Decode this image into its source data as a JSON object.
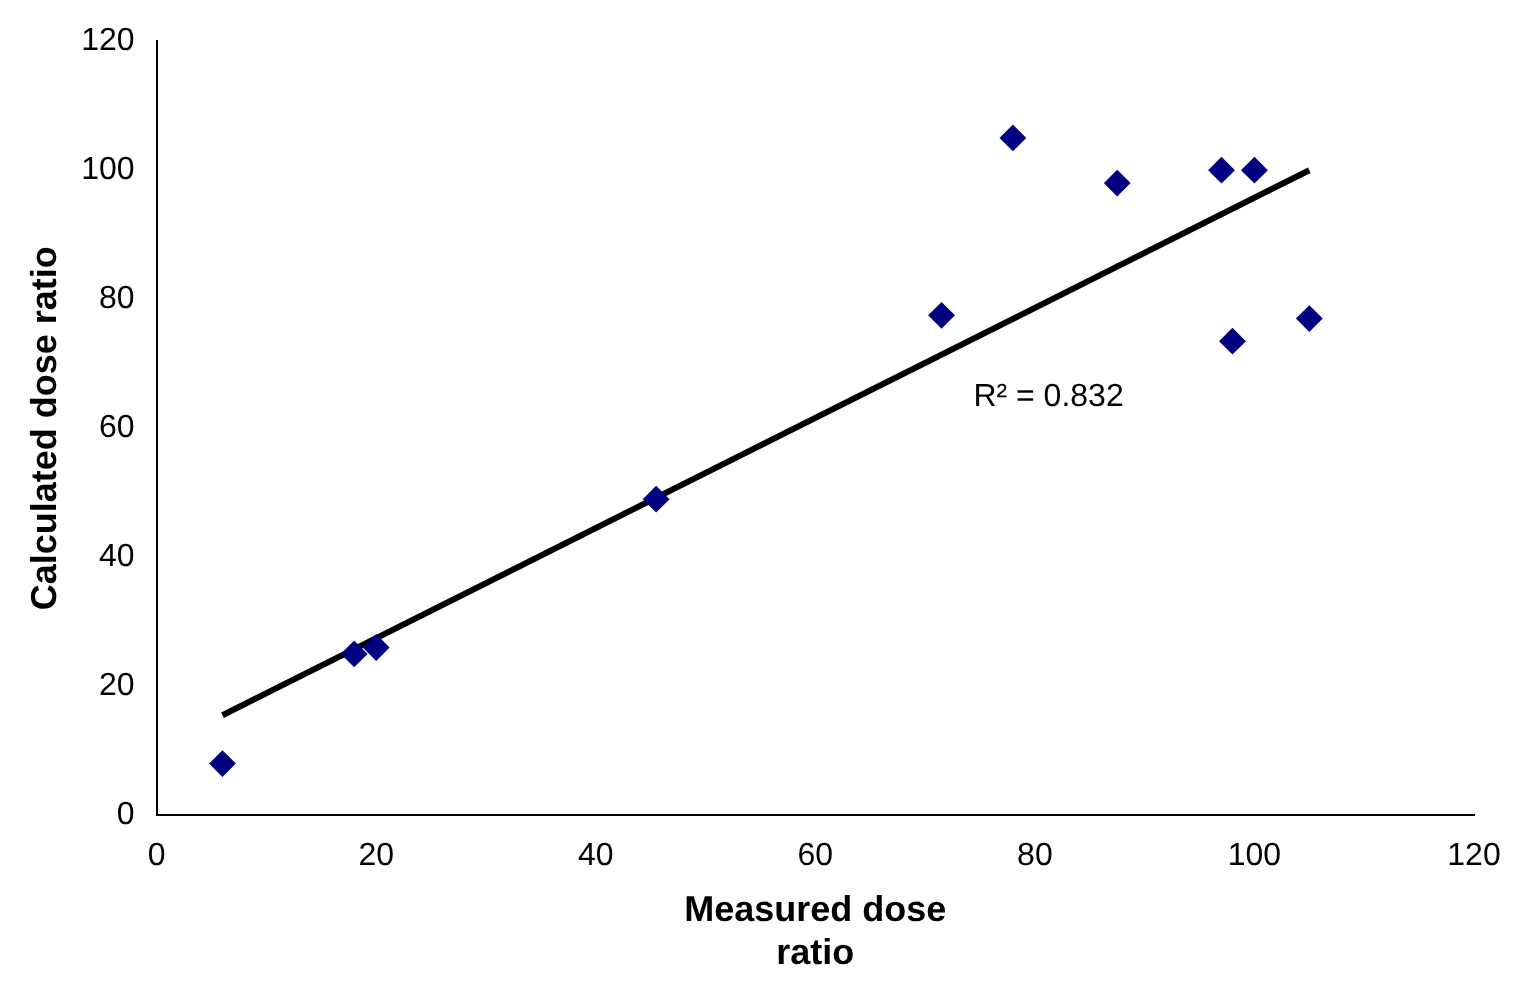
{
  "chart_data": {
    "type": "scatter",
    "xlabel": "Measured dose ratio",
    "ylabel": "Calculated dose ratio",
    "xlim": [
      0,
      120
    ],
    "xticks": [
      0,
      20,
      40,
      60,
      80,
      100,
      120
    ],
    "ylim": [
      0,
      120
    ],
    "yticks": [
      0,
      20,
      40,
      60,
      80,
      100,
      120
    ],
    "grid": false,
    "legend": false,
    "marker": "diamond",
    "series": [
      {
        "type": "scatter",
        "color": "#000080",
        "x": [
          6,
          18,
          20,
          45.5,
          71.5,
          78,
          87.5,
          97,
          100,
          98,
          105
        ],
        "values": [
          8,
          25,
          26,
          49,
          77.5,
          105,
          98,
          100,
          100,
          73.5,
          77
        ]
      },
      {
        "type": "line",
        "color": "#000000",
        "marker": "none",
        "line_style": "solid",
        "x": [
          6,
          105
        ],
        "values": [
          15.5,
          100
        ]
      }
    ],
    "annotations": [
      "R² = 0.832"
    ]
  }
}
